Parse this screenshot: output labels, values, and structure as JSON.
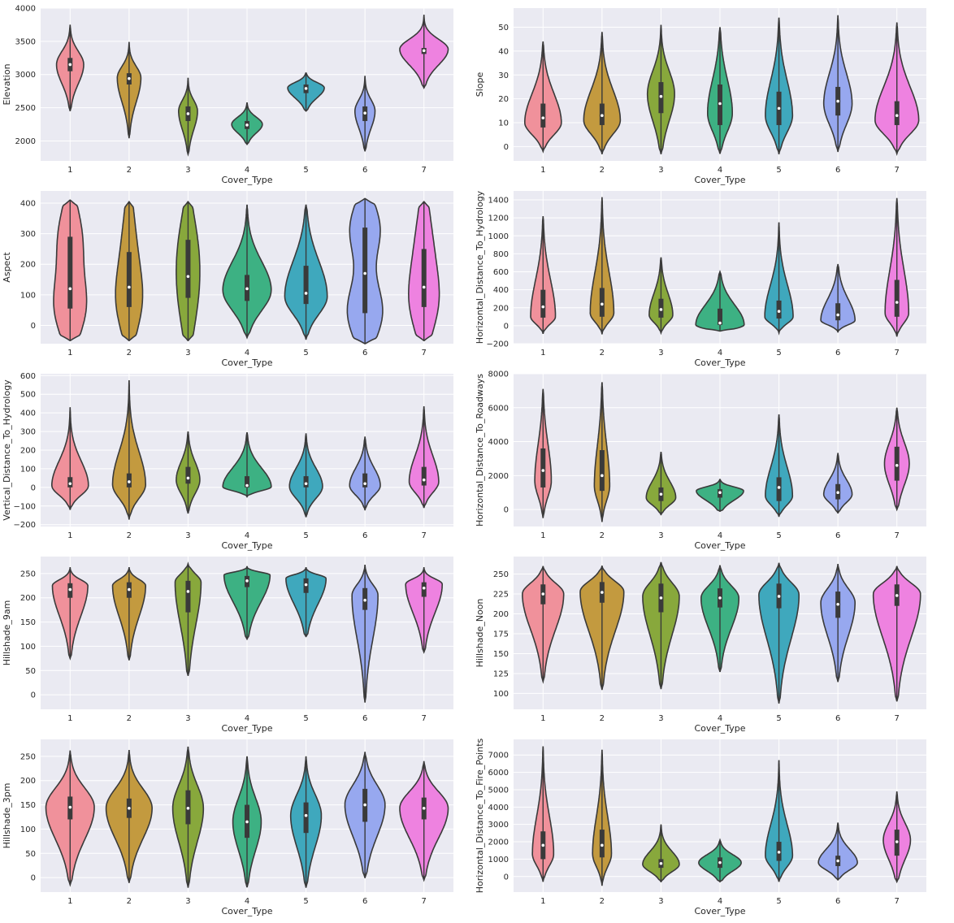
{
  "chart_data": [
    {
      "type": "violin",
      "xlabel": "Cover_Type",
      "ylabel": "Elevation",
      "categories": [
        "1",
        "2",
        "3",
        "4",
        "5",
        "6",
        "7"
      ],
      "ylim": [
        1700,
        4000
      ],
      "yticks": [
        2000,
        2500,
        3000,
        3500,
        4000
      ],
      "violins": [
        {
          "min": 2450,
          "max": 3750,
          "q1": 3050,
          "median": 3150,
          "q3": 3250,
          "mode": 3150,
          "maxwidth": 0.46
        },
        {
          "min": 2050,
          "max": 3490,
          "q1": 2850,
          "median": 2940,
          "q3": 3020,
          "mode": 2950,
          "maxwidth": 0.4
        },
        {
          "min": 1800,
          "max": 2950,
          "q1": 2300,
          "median": 2410,
          "q3": 2520,
          "mode": 2450,
          "maxwidth": 0.32
        },
        {
          "min": 1950,
          "max": 2580,
          "q1": 2180,
          "median": 2240,
          "q3": 2300,
          "mode": 2250,
          "maxwidth": 0.52
        },
        {
          "min": 2450,
          "max": 3030,
          "q1": 2720,
          "median": 2790,
          "q3": 2850,
          "mode": 2800,
          "maxwidth": 0.62
        },
        {
          "min": 1850,
          "max": 2980,
          "q1": 2300,
          "median": 2420,
          "q3": 2520,
          "mode": 2450,
          "maxwidth": 0.34
        },
        {
          "min": 2800,
          "max": 3900,
          "q1": 3310,
          "median": 3360,
          "q3": 3400,
          "mode": 3380,
          "maxwidth": 0.82
        }
      ]
    },
    {
      "type": "violin",
      "xlabel": "Cover_Type",
      "ylabel": "Slope",
      "categories": [
        "1",
        "2",
        "3",
        "4",
        "5",
        "6",
        "7"
      ],
      "ylim": [
        -6,
        58
      ],
      "yticks": [
        0,
        10,
        20,
        30,
        40,
        50
      ],
      "violins": [
        {
          "min": -2,
          "max": 44,
          "q1": 8,
          "median": 12,
          "q3": 18,
          "mode": 10,
          "maxwidth": 0.62
        },
        {
          "min": -3,
          "max": 48,
          "q1": 9,
          "median": 13,
          "q3": 18,
          "mode": 11,
          "maxwidth": 0.62
        },
        {
          "min": -3,
          "max": 51,
          "q1": 14,
          "median": 21,
          "q3": 27,
          "mode": 22,
          "maxwidth": 0.46
        },
        {
          "min": -3,
          "max": 50,
          "q1": 9,
          "median": 18,
          "q3": 26,
          "mode": 14,
          "maxwidth": 0.42
        },
        {
          "min": -3,
          "max": 54,
          "q1": 9,
          "median": 16,
          "q3": 23,
          "mode": 13,
          "maxwidth": 0.46
        },
        {
          "min": -2,
          "max": 55,
          "q1": 13,
          "median": 19,
          "q3": 25,
          "mode": 18,
          "maxwidth": 0.48
        },
        {
          "min": -3,
          "max": 52,
          "q1": 9,
          "median": 13,
          "q3": 19,
          "mode": 11,
          "maxwidth": 0.74
        }
      ]
    },
    {
      "type": "violin",
      "xlabel": "Cover_Type",
      "ylabel": "Aspect",
      "categories": [
        "1",
        "2",
        "3",
        "4",
        "5",
        "6",
        "7"
      ],
      "ylim": [
        -60,
        440
      ],
      "yticks": [
        0,
        100,
        200,
        300,
        400
      ],
      "violins": [
        {
          "min": -50,
          "max": 410,
          "q1": 55,
          "median": 120,
          "q3": 290,
          "bimodal": true,
          "maxwidth": 0.56
        },
        {
          "min": -50,
          "max": 405,
          "q1": 60,
          "median": 125,
          "q3": 240,
          "bimodal": true,
          "maxwidth": 0.46
        },
        {
          "min": -50,
          "max": 405,
          "q1": 90,
          "median": 160,
          "q3": 280,
          "bimodal": true,
          "maxwidth": 0.4
        },
        {
          "min": -40,
          "max": 395,
          "q1": 80,
          "median": 120,
          "q3": 165,
          "mode": 115,
          "maxwidth": 0.82
        },
        {
          "min": -45,
          "max": 395,
          "q1": 70,
          "median": 105,
          "q3": 195,
          "mode": 95,
          "maxwidth": 0.72
        },
        {
          "min": -60,
          "max": 415,
          "q1": 40,
          "median": 170,
          "q3": 320,
          "bimodal": true,
          "maxwidth": 0.6
        },
        {
          "min": -50,
          "max": 405,
          "q1": 60,
          "median": 125,
          "q3": 250,
          "bimodal": true,
          "maxwidth": 0.52
        }
      ]
    },
    {
      "type": "violin",
      "xlabel": "Cover_Type",
      "ylabel": "Horizontal_Distance_To_Hydrology",
      "categories": [
        "1",
        "2",
        "3",
        "4",
        "5",
        "6",
        "7"
      ],
      "ylim": [
        -200,
        1500
      ],
      "yticks": [
        -200,
        0,
        200,
        400,
        600,
        800,
        1000,
        1200,
        1400
      ],
      "violins": [
        {
          "min": -90,
          "max": 1220,
          "q1": 90,
          "median": 210,
          "q3": 400,
          "mode": 100,
          "maxwidth": 0.42
        },
        {
          "min": -90,
          "max": 1430,
          "q1": 100,
          "median": 240,
          "q3": 420,
          "mode": 140,
          "maxwidth": 0.4
        },
        {
          "min": -80,
          "max": 760,
          "q1": 90,
          "median": 180,
          "q3": 300,
          "mode": 120,
          "maxwidth": 0.4
        },
        {
          "min": -60,
          "max": 600,
          "q1": 10,
          "median": 30,
          "q3": 190,
          "mode": 10,
          "maxwidth": 0.82
        },
        {
          "min": -80,
          "max": 1150,
          "q1": 80,
          "median": 160,
          "q3": 280,
          "mode": 100,
          "maxwidth": 0.48
        },
        {
          "min": -70,
          "max": 680,
          "q1": 60,
          "median": 120,
          "q3": 250,
          "mode": 60,
          "maxwidth": 0.58
        },
        {
          "min": -120,
          "max": 1420,
          "q1": 100,
          "median": 260,
          "q3": 510,
          "mode": 140,
          "maxwidth": 0.4
        }
      ]
    },
    {
      "type": "violin",
      "xlabel": "Cover_Type",
      "ylabel": "Vertical_Distance_To_Hydrology",
      "categories": [
        "1",
        "2",
        "3",
        "4",
        "5",
        "6",
        "7"
      ],
      "ylim": [
        -210,
        610
      ],
      "yticks": [
        -200,
        -100,
        0,
        100,
        200,
        300,
        400,
        500,
        600
      ],
      "violins": [
        {
          "min": -120,
          "max": 430,
          "q1": 0,
          "median": 20,
          "q3": 55,
          "mode": 10,
          "maxwidth": 0.62
        },
        {
          "min": -170,
          "max": 575,
          "q1": 0,
          "median": 30,
          "q3": 75,
          "mode": 15,
          "maxwidth": 0.56
        },
        {
          "min": -140,
          "max": 300,
          "q1": 20,
          "median": 50,
          "q3": 110,
          "mode": 40,
          "maxwidth": 0.4
        },
        {
          "min": -50,
          "max": 295,
          "q1": 0,
          "median": 10,
          "q3": 60,
          "mode": 3,
          "maxwidth": 0.82
        },
        {
          "min": -160,
          "max": 290,
          "q1": 0,
          "median": 20,
          "q3": 60,
          "mode": 5,
          "maxwidth": 0.56
        },
        {
          "min": -120,
          "max": 270,
          "q1": 0,
          "median": 20,
          "q3": 75,
          "mode": 10,
          "maxwidth": 0.52
        },
        {
          "min": -110,
          "max": 435,
          "q1": 10,
          "median": 40,
          "q3": 110,
          "mode": 30,
          "maxwidth": 0.5
        }
      ]
    },
    {
      "type": "violin",
      "xlabel": "Cover_Type",
      "ylabel": "Horizontal_Distance_To_Roadways",
      "categories": [
        "1",
        "2",
        "3",
        "4",
        "5",
        "6",
        "7"
      ],
      "ylim": [
        -1000,
        8000
      ],
      "yticks": [
        0,
        2000,
        4000,
        6000,
        8000
      ],
      "violins": [
        {
          "min": -500,
          "max": 7100,
          "q1": 1300,
          "median": 2300,
          "q3": 3600,
          "mode": 1700,
          "maxwidth": 0.28
        },
        {
          "min": -700,
          "max": 7500,
          "q1": 1100,
          "median": 2000,
          "q3": 3500,
          "mode": 1400,
          "maxwidth": 0.26
        },
        {
          "min": -300,
          "max": 3400,
          "q1": 500,
          "median": 900,
          "q3": 1300,
          "mode": 700,
          "maxwidth": 0.5
        },
        {
          "min": -100,
          "max": 1800,
          "q1": 700,
          "median": 1000,
          "q3": 1200,
          "mode": 1100,
          "maxwidth": 0.8
        },
        {
          "min": -400,
          "max": 5600,
          "q1": 500,
          "median": 1300,
          "q3": 1900,
          "mode": 800,
          "maxwidth": 0.46
        },
        {
          "min": -200,
          "max": 3300,
          "q1": 600,
          "median": 1000,
          "q3": 1500,
          "mode": 900,
          "maxwidth": 0.48
        },
        {
          "min": 0,
          "max": 6000,
          "q1": 1700,
          "median": 2600,
          "q3": 3700,
          "mode": 2700,
          "maxwidth": 0.42
        }
      ]
    },
    {
      "type": "violin",
      "xlabel": "Cover_Type",
      "ylabel": "Hillshade_9am",
      "categories": [
        "1",
        "2",
        "3",
        "4",
        "5",
        "6",
        "7"
      ],
      "ylim": [
        -30,
        285
      ],
      "yticks": [
        0,
        50,
        100,
        150,
        200,
        250
      ],
      "violins": [
        {
          "min": 75,
          "max": 263,
          "q1": 200,
          "median": 217,
          "q3": 230,
          "mode": 225,
          "maxwidth": 0.6
        },
        {
          "min": 72,
          "max": 263,
          "q1": 200,
          "median": 217,
          "q3": 232,
          "mode": 225,
          "maxwidth": 0.56
        },
        {
          "min": 40,
          "max": 270,
          "q1": 170,
          "median": 213,
          "q3": 235,
          "mode": 232,
          "maxwidth": 0.44
        },
        {
          "min": 115,
          "max": 265,
          "q1": 222,
          "median": 235,
          "q3": 245,
          "mode": 247,
          "maxwidth": 0.78
        },
        {
          "min": 120,
          "max": 263,
          "q1": 210,
          "median": 227,
          "q3": 240,
          "mode": 240,
          "maxwidth": 0.68
        },
        {
          "min": -15,
          "max": 268,
          "q1": 175,
          "median": 195,
          "q3": 220,
          "mode": 205,
          "maxwidth": 0.44
        },
        {
          "min": 88,
          "max": 263,
          "q1": 202,
          "median": 220,
          "q3": 232,
          "mode": 228,
          "maxwidth": 0.62
        }
      ]
    },
    {
      "type": "violin",
      "xlabel": "Cover_Type",
      "ylabel": "Hillshade_Noon",
      "categories": [
        "1",
        "2",
        "3",
        "4",
        "5",
        "6",
        "7"
      ],
      "ylim": [
        80,
        272
      ],
      "yticks": [
        100,
        125,
        150,
        175,
        200,
        225,
        250
      ],
      "violins": [
        {
          "min": 115,
          "max": 260,
          "q1": 212,
          "median": 225,
          "q3": 237,
          "mode": 225,
          "maxwidth": 0.7
        },
        {
          "min": 105,
          "max": 260,
          "q1": 214,
          "median": 227,
          "q3": 240,
          "mode": 228,
          "maxwidth": 0.74
        },
        {
          "min": 106,
          "max": 265,
          "q1": 202,
          "median": 220,
          "q3": 238,
          "mode": 222,
          "maxwidth": 0.62
        },
        {
          "min": 127,
          "max": 261,
          "q1": 208,
          "median": 220,
          "q3": 232,
          "mode": 220,
          "maxwidth": 0.64
        },
        {
          "min": 88,
          "max": 264,
          "q1": 207,
          "median": 222,
          "q3": 238,
          "mode": 224,
          "maxwidth": 0.68
        },
        {
          "min": 115,
          "max": 262,
          "q1": 195,
          "median": 212,
          "q3": 228,
          "mode": 214,
          "maxwidth": 0.58
        },
        {
          "min": 90,
          "max": 260,
          "q1": 210,
          "median": 223,
          "q3": 237,
          "mode": 225,
          "maxwidth": 0.8
        }
      ]
    },
    {
      "type": "violin",
      "xlabel": "Cover_Type",
      "ylabel": "Hillshade_3pm",
      "categories": [
        "1",
        "2",
        "3",
        "4",
        "5",
        "6",
        "7"
      ],
      "ylim": [
        -30,
        285
      ],
      "yticks": [
        0,
        50,
        100,
        150,
        200,
        250
      ],
      "violins": [
        {
          "min": -15,
          "max": 262,
          "q1": 120,
          "median": 145,
          "q3": 167,
          "mode": 145,
          "maxwidth": 0.82
        },
        {
          "min": -10,
          "max": 263,
          "q1": 123,
          "median": 143,
          "q3": 163,
          "mode": 143,
          "maxwidth": 0.78
        },
        {
          "min": -20,
          "max": 270,
          "q1": 110,
          "median": 143,
          "q3": 180,
          "mode": 143,
          "maxwidth": 0.52
        },
        {
          "min": -20,
          "max": 250,
          "q1": 82,
          "median": 115,
          "q3": 150,
          "mode": 115,
          "maxwidth": 0.48
        },
        {
          "min": -20,
          "max": 250,
          "q1": 92,
          "median": 128,
          "q3": 155,
          "mode": 128,
          "maxwidth": 0.52
        },
        {
          "min": 0,
          "max": 258,
          "q1": 115,
          "median": 150,
          "q3": 183,
          "mode": 150,
          "maxwidth": 0.68
        },
        {
          "min": -5,
          "max": 240,
          "q1": 120,
          "median": 143,
          "q3": 165,
          "mode": 143,
          "maxwidth": 0.82
        }
      ]
    },
    {
      "type": "violin",
      "xlabel": "Cover_Type",
      "ylabel": "Horizontal_Distance_To_Fire_Points",
      "categories": [
        "1",
        "2",
        "3",
        "4",
        "5",
        "6",
        "7"
      ],
      "ylim": [
        -900,
        7900
      ],
      "yticks": [
        0,
        1000,
        2000,
        3000,
        4000,
        5000,
        6000,
        7000
      ],
      "violins": [
        {
          "min": -300,
          "max": 7500,
          "q1": 1000,
          "median": 1800,
          "q3": 2600,
          "mode": 1300,
          "maxwidth": 0.36
        },
        {
          "min": -500,
          "max": 7300,
          "q1": 1100,
          "median": 1800,
          "q3": 2700,
          "mode": 1300,
          "maxwidth": 0.32
        },
        {
          "min": -300,
          "max": 3000,
          "q1": 500,
          "median": 750,
          "q3": 1000,
          "mode": 700,
          "maxwidth": 0.62
        },
        {
          "min": -300,
          "max": 2100,
          "q1": 500,
          "median": 800,
          "q3": 1100,
          "mode": 800,
          "maxwidth": 0.72
        },
        {
          "min": -300,
          "max": 6700,
          "q1": 900,
          "median": 1400,
          "q3": 2000,
          "mode": 1200,
          "maxwidth": 0.46
        },
        {
          "min": -200,
          "max": 3100,
          "q1": 600,
          "median": 900,
          "q3": 1200,
          "mode": 800,
          "maxwidth": 0.66
        },
        {
          "min": -300,
          "max": 4900,
          "q1": 1200,
          "median": 2000,
          "q3": 2700,
          "mode": 2100,
          "maxwidth": 0.46
        }
      ]
    }
  ],
  "palette": [
    "#f0919b",
    "#c39a3f",
    "#88a83c",
    "#3db183",
    "#3fa8bd",
    "#97a8ef",
    "#ee82e0"
  ],
  "style": {
    "panel_bg": "#eaeaf2",
    "grid": "#ffffff",
    "outline": "#3a3a3a"
  }
}
